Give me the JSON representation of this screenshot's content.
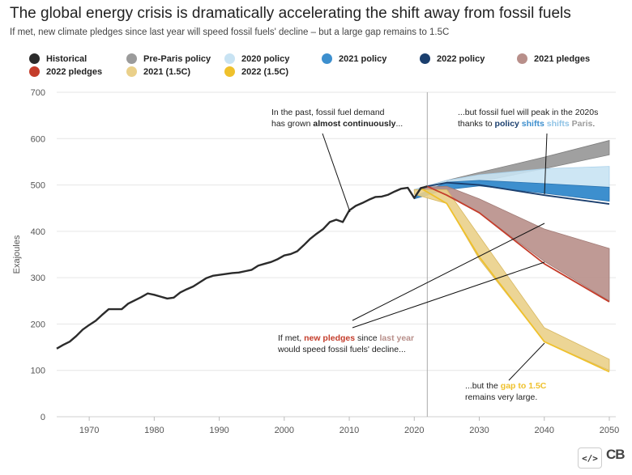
{
  "header": {
    "title": "The global energy crisis is dramatically accelerating the shift away from fossil fuels",
    "subtitle": "If met, new climate pledges since last year will speed fossil fuels' decline – but a large gap remains to 1.5C"
  },
  "legend": [
    {
      "label": "Historical",
      "color": "#2b2b2b"
    },
    {
      "label": "Pre-Paris policy",
      "color": "#9b9b9b"
    },
    {
      "label": "2020 policy",
      "color": "#c8e3f3"
    },
    {
      "label": "2021 policy",
      "color": "#3d8fce"
    },
    {
      "label": "2022 policy",
      "color": "#1b3f6e"
    },
    {
      "label": "2021 pledges",
      "color": "#b88f8a"
    },
    {
      "label": "2022 pledges",
      "color": "#c43d2b"
    },
    {
      "label": "2021 (1.5C)",
      "color": "#ead08a"
    },
    {
      "label": "2022 (1.5C)",
      "color": "#efc12c"
    }
  ],
  "annotations": {
    "a1_line1": "In the past, fossil fuel demand",
    "a1_line2_pre": "has grown ",
    "a1_line2_bold": "almost continuously",
    "a1_line2_post": "...",
    "a2_line1": "...but fossil fuel will peak in the 2020s",
    "a2_line2_pre": "thanks to ",
    "a2_line2_b1": "policy",
    "a2_line2_b2": "shifts",
    "a2_line2_b3": "shifts",
    "a2_line2_b4": "Paris",
    "a2_line2_post": ".",
    "a3_line1_pre": "If met, ",
    "a3_line1_b1": "new pledges",
    "a3_line1_mid": " since ",
    "a3_line1_b2": "last year",
    "a3_line2": "would speed fossil fuels' decline...",
    "a4_line1_pre": "...but the ",
    "a4_line1_bold": "gap to 1.5C",
    "a4_line2": "remains very large."
  },
  "footer": {
    "embed_label": "</>",
    "logo": "CB"
  },
  "chart_data": {
    "type": "line",
    "ylabel": "Exajoules",
    "xlabel": "",
    "xlim": [
      1965,
      2051
    ],
    "ylim": [
      0,
      700
    ],
    "xticks": [
      1970,
      1980,
      1990,
      2000,
      2010,
      2020,
      2030,
      2040,
      2050
    ],
    "yticks": [
      0,
      100,
      200,
      300,
      400,
      500,
      600,
      700
    ],
    "grid": true,
    "vertical_marker_x": 2022,
    "historical": {
      "name": "Historical",
      "x": [
        1965,
        1966,
        1967,
        1968,
        1969,
        1970,
        1971,
        1972,
        1973,
        1974,
        1975,
        1976,
        1977,
        1978,
        1979,
        1980,
        1981,
        1982,
        1983,
        1984,
        1985,
        1986,
        1987,
        1988,
        1989,
        1990,
        1991,
        1992,
        1993,
        1994,
        1995,
        1996,
        1997,
        1998,
        1999,
        2000,
        2001,
        2002,
        2003,
        2004,
        2005,
        2006,
        2007,
        2008,
        2009,
        2010,
        2011,
        2012,
        2013,
        2014,
        2015,
        2016,
        2017,
        2018,
        2019,
        2020,
        2021,
        2022
      ],
      "y": [
        147,
        155,
        162,
        174,
        188,
        198,
        207,
        220,
        232,
        232,
        232,
        244,
        251,
        258,
        266,
        263,
        259,
        255,
        257,
        268,
        275,
        281,
        290,
        299,
        304,
        306,
        308,
        310,
        311,
        314,
        317,
        326,
        330,
        334,
        340,
        348,
        351,
        357,
        370,
        384,
        395,
        405,
        420,
        425,
        420,
        445,
        455,
        461,
        468,
        474,
        475,
        479,
        486,
        492,
        494,
        472,
        493,
        497
      ]
    },
    "projections": [
      {
        "name": "Pre-Paris policy",
        "x": [
          2020,
          2025,
          2030,
          2040,
          2050
        ],
        "low": [
          488,
          500,
          507,
          535,
          565
        ],
        "high": [
          490,
          510,
          527,
          560,
          596
        ]
      },
      {
        "name": "2020 policy",
        "x": [
          2020,
          2025,
          2030,
          2040,
          2050
        ],
        "low": [
          488,
          500,
          505,
          500,
          493
        ],
        "high": [
          490,
          510,
          522,
          535,
          540
        ]
      },
      {
        "name": "2021 policy",
        "x": [
          2020,
          2025,
          2030,
          2040,
          2050
        ],
        "low": [
          470,
          490,
          498,
          482,
          465
        ],
        "high": [
          475,
          506,
          510,
          503,
          495
        ]
      },
      {
        "name": "2022 policy",
        "x": [
          2022,
          2025,
          2030,
          2040,
          2050
        ],
        "y": [
          497,
          505,
          500,
          478,
          459
        ]
      },
      {
        "name": "2021 pledges",
        "x": [
          2021,
          2025,
          2030,
          2040,
          2050
        ],
        "low": [
          493,
          480,
          440,
          335,
          250
        ],
        "high": [
          495,
          497,
          470,
          405,
          363
        ]
      },
      {
        "name": "2022 pledges",
        "x": [
          2022,
          2025,
          2030,
          2040,
          2050
        ],
        "y": [
          497,
          478,
          440,
          330,
          248
        ]
      },
      {
        "name": "2021 (1.5C)",
        "x": [
          2020,
          2025,
          2030,
          2040,
          2050
        ],
        "low": [
          480,
          460,
          340,
          162,
          100
        ],
        "high": [
          490,
          490,
          390,
          192,
          124
        ]
      },
      {
        "name": "2022 (1.5C)",
        "x": [
          2021,
          2025,
          2030,
          2040,
          2050
        ],
        "y": [
          493,
          460,
          345,
          162,
          97
        ]
      }
    ]
  }
}
